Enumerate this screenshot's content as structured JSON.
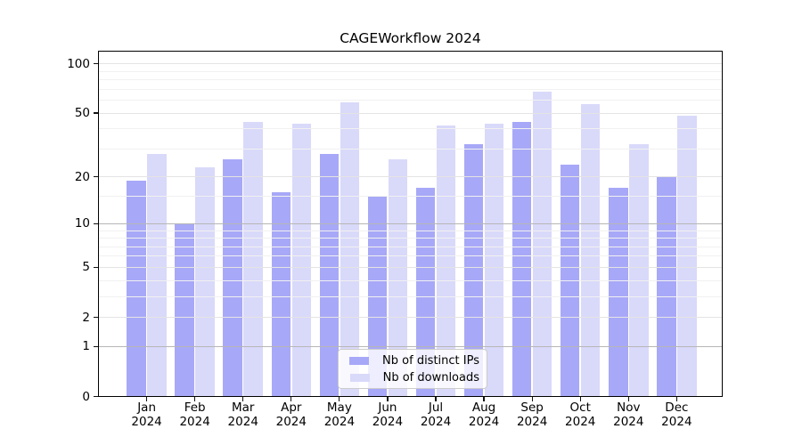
{
  "chart_data": {
    "type": "bar",
    "title": "CAGEWorkflow 2024",
    "categories": [
      "Jan 2024",
      "Feb 2024",
      "Mar 2024",
      "Apr 2024",
      "May 2024",
      "Jun 2024",
      "Jul 2024",
      "Aug 2024",
      "Sep 2024",
      "Oct 2024",
      "Nov 2024",
      "Dec 2024"
    ],
    "series": [
      {
        "name": "Nb of distinct IPs",
        "color": "#a8a8f8",
        "values": [
          19,
          10,
          26,
          16,
          28,
          15,
          17,
          32,
          44,
          24,
          17,
          20
        ]
      },
      {
        "name": "Nb of downloads",
        "color": "#d9d9fa",
        "values": [
          28,
          23,
          44,
          43,
          58,
          26,
          42,
          43,
          68,
          57,
          32,
          48
        ]
      }
    ],
    "xlabel": "",
    "ylabel": "",
    "yscale": "log1p",
    "yticks": [
      100,
      50,
      20,
      10,
      5,
      2,
      1,
      0
    ],
    "ylim": [
      0,
      115
    ],
    "grid": "both",
    "legend_position": "lower center",
    "colors": {
      "spine": "#000000",
      "grid_emphasized": "#b6b6b6",
      "grid_major": "#e4e4e4",
      "grid_minor": "#f1f1f1",
      "text": "#000000"
    }
  }
}
